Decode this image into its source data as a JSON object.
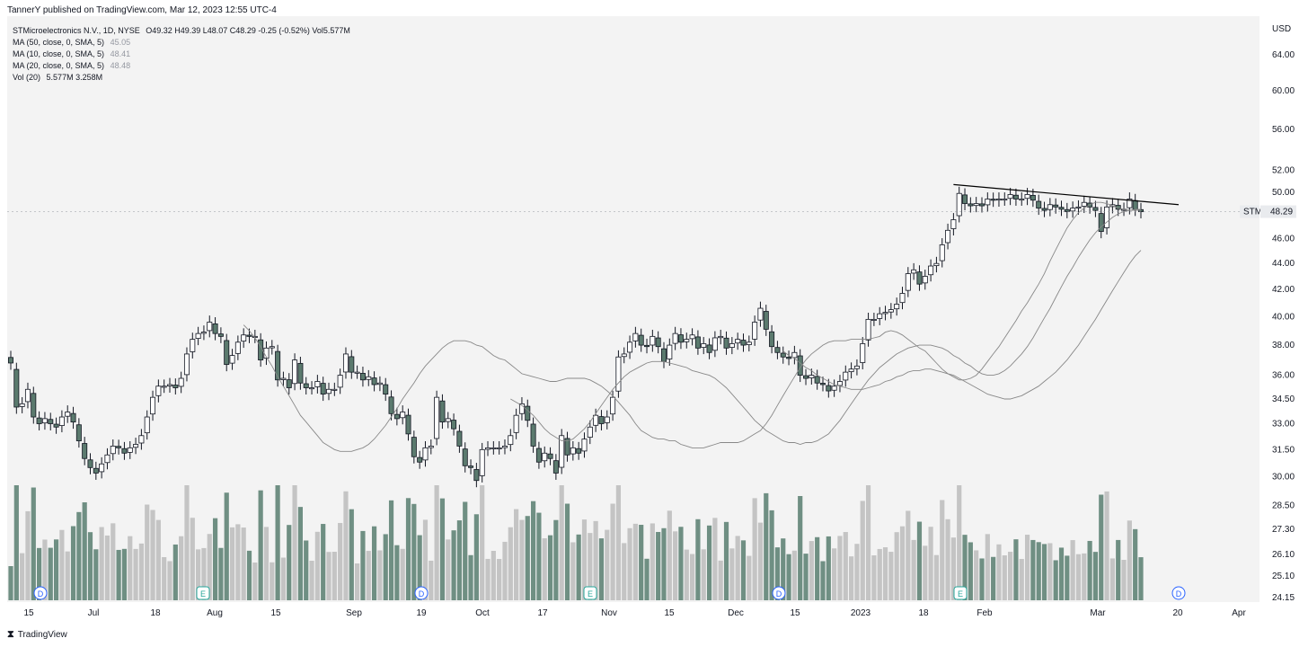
{
  "published": "TannerY published on TradingView.com, Mar 12, 2023 12:55 UTC-4",
  "legend": {
    "title": "STMicroelectronics N.V., 1D, NYSE",
    "ohlc": "O49.32  H49.39  L48.07  C48.29  -0.25 (-0.52%)  Vol5.577M",
    "ma50_label": "MA (50, close, 0, SMA, 5)",
    "ma50_value": "45.05",
    "ma10_label": "MA (10, close, 0, SMA, 5)",
    "ma10_value": "48.41",
    "ma20_label": "MA (20, close, 0, SMA, 5)",
    "ma20_value": "48.48",
    "vol_label": "Vol (20)",
    "vol_value": "5.577M  3.258M"
  },
  "currency": "USD",
  "price_tag": {
    "symbol": "STM",
    "value": "48.29"
  },
  "footer": {
    "brand": "TradingView"
  },
  "colors": {
    "up": "#ffffff",
    "down": "#5b7a6e",
    "wick": "#131722",
    "vol_up": "#c4c4c4",
    "vol_down": "#6f8f83",
    "ma": "#888888",
    "vol_ma": "#131722",
    "background": "#f3f3f3"
  },
  "chart_data": {
    "type": "candlestick",
    "title": "STMicroelectronics N.V., 1D, NYSE",
    "y_scale": "log",
    "ylim": [
      24.15,
      66.0
    ],
    "yticks": [
      "64.00",
      "60.00",
      "56.00",
      "52.00",
      "50.00",
      "48.00",
      "46.00",
      "44.00",
      "42.00",
      "40.00",
      "38.00",
      "36.00",
      "34.50",
      "33.00",
      "31.50",
      "30.00",
      "28.50",
      "27.30",
      "26.10",
      "25.10",
      "24.15"
    ],
    "xticks": [
      "15",
      "Jul",
      "18",
      "Aug",
      "15",
      "Sep",
      "19",
      "Oct",
      "17",
      "Nov",
      "15",
      "Dec",
      "15",
      "2023",
      "18",
      "Feb",
      "Mar",
      "20",
      "Apr"
    ],
    "close": [
      36.8,
      34.0,
      34.2,
      35.1,
      33.4,
      33.0,
      33.3,
      33.0,
      32.8,
      33.4,
      33.7,
      33.1,
      32.0,
      31.0,
      30.5,
      30.2,
      30.7,
      31.2,
      31.7,
      31.6,
      31.3,
      31.6,
      31.8,
      32.3,
      33.4,
      34.6,
      35.3,
      35.3,
      35.4,
      35.2,
      35.8,
      37.4,
      38.4,
      38.8,
      38.9,
      39.6,
      38.8,
      38.6,
      36.7,
      37.3,
      38.2,
      38.7,
      38.6,
      38.6,
      37.0,
      37.8,
      37.9,
      35.7,
      35.8,
      35.2,
      37.0,
      35.5,
      35.2,
      35.2,
      35.6,
      34.8,
      35.1,
      35.1,
      36.0,
      37.4,
      36.2,
      36.2,
      35.7,
      35.9,
      35.4,
      35.5,
      34.8,
      33.6,
      33.3,
      33.7,
      32.4,
      31.1,
      30.8,
      31.6,
      31.7,
      34.6,
      33.1,
      33.3,
      32.7,
      31.7,
      30.6,
      30.5,
      29.8,
      31.5,
      31.6,
      31.6,
      31.6,
      31.7,
      32.3,
      33.5,
      34.2,
      33.2,
      31.7,
      30.8,
      31.3,
      31.0,
      30.2,
      32.3,
      31.2,
      31.6,
      31.3,
      32.1,
      32.8,
      33.5,
      33.0,
      33.4,
      34.6,
      37.2,
      37.4,
      38.2,
      38.8,
      38.0,
      37.9,
      38.6,
      37.9,
      36.9,
      38.0,
      38.8,
      38.2,
      38.4,
      38.7,
      37.8,
      38.1,
      37.5,
      38.5,
      38.6,
      37.8,
      38.1,
      38.4,
      38.0,
      38.2,
      39.6,
      40.6,
      39.1,
      37.9,
      37.5,
      37.2,
      37.1,
      37.5,
      36.0,
      35.8,
      36.0,
      35.5,
      35.4,
      35.0,
      35.3,
      35.6,
      36.2,
      36.4,
      36.6,
      38.1,
      39.8,
      39.8,
      40.2,
      40.3,
      40.5,
      40.9,
      41.7,
      43.2,
      43.5,
      42.4,
      43.0,
      43.8,
      44.0,
      45.5,
      46.7,
      47.6,
      49.9,
      49.0,
      48.8,
      49.0,
      48.8,
      49.4,
      49.3,
      49.4,
      49.4,
      49.8,
      49.4,
      49.4,
      49.8,
      49.3,
      48.6,
      48.4,
      48.9,
      48.7,
      48.5,
      48.3,
      48.6,
      48.7,
      49.1,
      48.7,
      48.4,
      46.6,
      48.7,
      48.9,
      48.5,
      48.5,
      49.4,
      48.5,
      48.29
    ],
    "volume_max_label": "Vol (20)",
    "volume_ticks": [],
    "ma10": [
      39.4,
      39.0,
      38.5,
      37.9,
      37.2,
      36.6,
      35.9,
      35.3,
      34.7,
      34.1,
      33.5,
      33.1,
      32.7,
      32.3,
      31.9,
      31.7,
      31.5,
      31.4,
      31.4,
      31.4,
      31.5,
      31.6,
      31.8,
      32.1,
      32.5,
      32.9,
      33.4,
      33.9,
      34.5,
      35.0,
      35.5,
      36.1,
      36.6,
      37.0,
      37.4,
      37.8,
      38.1,
      38.3,
      38.3,
      38.3,
      38.2,
      38.0,
      37.9,
      37.6,
      37.3,
      37.1,
      37.0,
      36.7,
      36.4,
      36.1,
      36.0,
      35.9,
      35.8,
      35.7,
      35.6,
      35.6,
      35.7,
      35.8,
      35.8,
      35.8,
      35.8,
      35.7,
      35.5,
      35.3,
      35.0,
      34.7,
      34.3,
      33.9,
      33.5,
      33.0,
      32.6,
      32.4,
      32.2,
      32.1,
      32.1,
      32.0,
      32.0,
      31.8,
      31.7,
      31.6,
      31.6,
      31.6,
      31.7,
      31.8,
      31.9,
      31.9,
      31.9,
      31.9,
      32.0,
      32.2,
      32.4,
      32.6,
      33.0,
      33.5,
      34.1,
      34.7,
      35.3,
      35.9,
      36.5,
      37.0,
      37.4,
      37.7,
      38.0,
      38.2,
      38.3,
      38.3,
      38.3,
      38.4,
      38.4,
      38.4,
      38.4,
      38.5,
      38.6,
      38.9,
      39.0,
      38.9,
      38.7,
      38.4,
      38.1,
      37.8,
      37.6,
      37.2,
      36.8,
      36.4,
      36.1,
      35.9,
      35.7,
      35.7,
      35.8,
      36.0,
      36.4,
      36.9,
      37.4,
      37.9,
      38.5,
      39.1,
      39.7,
      40.4,
      41.0,
      41.7,
      42.4,
      43.2,
      44.2,
      45.1,
      46.0,
      46.9,
      47.6,
      48.2,
      48.6,
      48.9,
      49.1,
      49.1,
      49.0,
      48.8,
      48.6,
      48.5,
      48.4,
      48.4,
      48.4
    ],
    "ma20": [
      34.5,
      34.3,
      34.1,
      33.8,
      33.5,
      33.1,
      32.7,
      32.4,
      32.2,
      32.0,
      32.0,
      32.1,
      32.4,
      32.7,
      33.1,
      33.6,
      34.1,
      34.6,
      35.1,
      35.5,
      35.9,
      36.2,
      36.4,
      36.6,
      36.8,
      36.9,
      36.9,
      36.9,
      36.8,
      36.7,
      36.6,
      36.5,
      36.3,
      36.2,
      36.1,
      36.0,
      35.8,
      35.5,
      35.2,
      34.8,
      34.4,
      34.0,
      33.6,
      33.2,
      32.9,
      32.6,
      32.4,
      32.2,
      32.0,
      31.9,
      31.9,
      31.8,
      31.9,
      31.9,
      32.0,
      32.2,
      32.4,
      32.8,
      33.2,
      33.7,
      34.2,
      34.7,
      35.2,
      35.7,
      36.1,
      36.5,
      36.8,
      37.1,
      37.4,
      37.6,
      37.8,
      37.9,
      38.0,
      38.0,
      38.0,
      37.9,
      37.8,
      37.6,
      37.3,
      37.1,
      36.8,
      36.6,
      36.3,
      36.1,
      36.0,
      36.0,
      36.1,
      36.3,
      36.6,
      37.0,
      37.4,
      37.9,
      38.5,
      39.2,
      39.9,
      40.6,
      41.4,
      42.2,
      43.0,
      43.7,
      44.5,
      45.2,
      45.9,
      46.5,
      47.0,
      47.4,
      47.8,
      48.1,
      48.3,
      48.4,
      48.5,
      48.5
    ],
    "ma50": [
      37.6,
      37.3,
      37.1,
      36.8,
      36.5,
      36.3,
      36.0,
      35.8,
      35.6,
      35.4,
      35.3,
      35.2,
      35.1,
      35.1,
      35.1,
      35.2,
      35.3,
      35.4,
      35.6,
      35.7,
      35.9,
      36.0,
      36.2,
      36.3,
      36.3,
      36.4,
      36.4,
      36.3,
      36.2,
      36.1,
      36.0,
      35.8,
      35.6,
      35.4,
      35.2,
      35.0,
      34.8,
      34.7,
      34.6,
      34.5,
      34.5,
      34.6,
      34.7,
      34.9,
      35.1,
      35.3,
      35.6,
      35.9,
      36.2,
      36.6,
      37.0,
      37.5,
      38.0,
      38.6,
      39.2,
      39.8,
      40.5,
      41.2,
      41.9,
      42.6,
      43.3,
      44.0,
      44.6,
      45.05
    ]
  }
}
